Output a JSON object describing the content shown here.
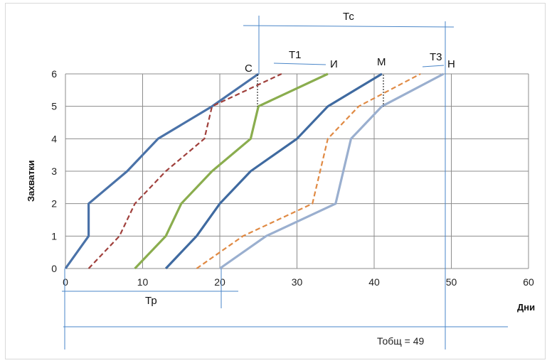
{
  "chart_data": {
    "type": "line",
    "xlabel": "Дни",
    "ylabel": "Захватки",
    "xlim": [
      0,
      60
    ],
    "ylim": [
      0,
      6
    ],
    "x_ticks": [
      0,
      10,
      20,
      30,
      40,
      50,
      60
    ],
    "y_ticks": [
      0,
      1,
      2,
      3,
      4,
      5,
      6
    ],
    "grid": true,
    "series": [
      {
        "color": "#4a72a8",
        "style": "solid",
        "points": [
          [
            0,
            0
          ],
          [
            3,
            1
          ],
          [
            3,
            2
          ],
          [
            8,
            3
          ],
          [
            12,
            4
          ],
          [
            19,
            5
          ],
          [
            25,
            6
          ]
        ]
      },
      {
        "color": "#a0403c",
        "style": "dashed",
        "points": [
          [
            3,
            0
          ],
          [
            7,
            1
          ],
          [
            9,
            2
          ],
          [
            13,
            3
          ],
          [
            18,
            4
          ],
          [
            19,
            5
          ],
          [
            28,
            6
          ]
        ]
      },
      {
        "color": "#8aad4e",
        "style": "solid",
        "points": [
          [
            9,
            0
          ],
          [
            13,
            1
          ],
          [
            15,
            2
          ],
          [
            19,
            3
          ],
          [
            24,
            4
          ],
          [
            25,
            5
          ],
          [
            34,
            6
          ]
        ]
      },
      {
        "color": "#3f6aa0",
        "style": "solid",
        "points": [
          [
            13,
            0
          ],
          [
            17,
            1
          ],
          [
            20,
            2
          ],
          [
            24,
            3
          ],
          [
            30,
            4
          ],
          [
            34,
            5
          ],
          [
            41,
            6
          ]
        ]
      },
      {
        "color": "#e08a44",
        "style": "dashed",
        "points": [
          [
            17,
            0
          ],
          [
            23,
            1
          ],
          [
            32,
            2
          ],
          [
            34,
            4
          ],
          [
            38,
            5
          ],
          [
            46,
            6
          ]
        ]
      },
      {
        "color": "#9aafcf",
        "style": "solid",
        "points": [
          [
            20,
            0
          ],
          [
            26,
            1
          ],
          [
            35,
            2
          ],
          [
            37,
            4
          ],
          [
            41,
            5
          ],
          [
            49,
            6
          ]
        ]
      }
    ],
    "annotations": {
      "C": "С",
      "T1": "Т1",
      "I": "И",
      "M": "М",
      "T3": "Т3",
      "H": "Н",
      "Tc": "Тс",
      "Tp": "Тр",
      "Ttotal": "Тобщ = 49"
    }
  }
}
